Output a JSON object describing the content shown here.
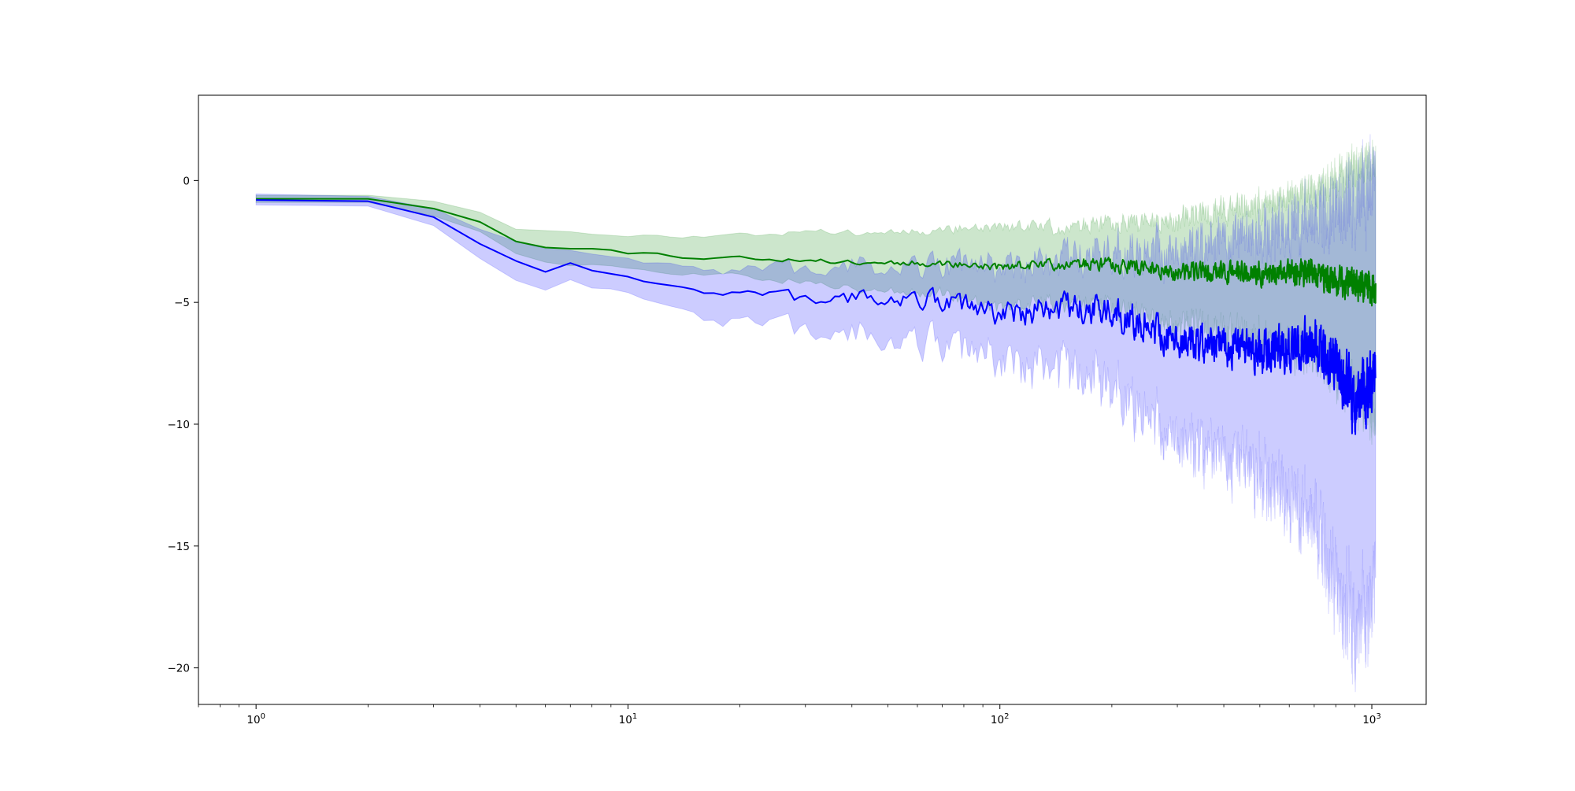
{
  "chart_data": {
    "type": "line",
    "title": "",
    "xlabel": "",
    "ylabel": "",
    "xscale": "log",
    "xlim": [
      0.7,
      1400
    ],
    "ylim": [
      -21.5,
      3.5
    ],
    "grid": false,
    "legend": "none",
    "x_ticks": [
      {
        "value": 1,
        "base": "10",
        "exp": "0"
      },
      {
        "value": 10,
        "base": "10",
        "exp": "1"
      },
      {
        "value": 100,
        "base": "10",
        "exp": "2"
      },
      {
        "value": 1000,
        "base": "10",
        "exp": "3"
      }
    ],
    "y_ticks": [
      {
        "value": 0,
        "label": "0"
      },
      {
        "value": -5,
        "label": "−5"
      },
      {
        "value": -10,
        "label": "−10"
      },
      {
        "value": -15,
        "label": "−15"
      },
      {
        "value": -20,
        "label": "−20"
      }
    ],
    "series": [
      {
        "color": "#008000",
        "band_color": "#008000",
        "band_opacity": 0.2,
        "noise_seed": 11,
        "x": [
          1,
          2,
          3,
          4,
          5,
          6,
          7,
          8,
          9,
          10,
          12,
          15,
          20,
          30,
          50,
          70,
          100,
          150,
          200,
          300,
          500,
          700,
          800,
          1000,
          1024
        ],
        "y": [
          -0.75,
          -0.75,
          -1.15,
          -1.7,
          -2.5,
          -2.75,
          -2.8,
          -2.8,
          -2.85,
          -3.0,
          -2.95,
          -3.2,
          -3.15,
          -3.3,
          -3.35,
          -3.4,
          -3.55,
          -3.4,
          -3.45,
          -3.75,
          -3.8,
          -3.8,
          -4.2,
          -4.4,
          -4.5
        ],
        "upper": [
          -0.6,
          -0.6,
          -0.85,
          -1.3,
          -2.0,
          -2.05,
          -2.1,
          -2.2,
          -2.25,
          -2.3,
          -2.2,
          -2.3,
          -2.2,
          -2.1,
          -2.1,
          -2.0,
          -1.9,
          -1.9,
          -1.8,
          -1.6,
          -1.0,
          -0.5,
          0.0,
          0.8,
          1.0
        ],
        "lower": [
          -0.9,
          -0.9,
          -1.45,
          -2.1,
          -3.0,
          -3.35,
          -3.5,
          -3.45,
          -3.5,
          -3.6,
          -3.7,
          -3.8,
          -3.9,
          -4.2,
          -4.5,
          -4.6,
          -5.2,
          -5.0,
          -5.2,
          -5.9,
          -6.5,
          -7.2,
          -8.0,
          -9.5,
          -9.8
        ],
        "noise": [
          0,
          0,
          0,
          0,
          0,
          0,
          0,
          0,
          0,
          0,
          0.04,
          0.05,
          0.06,
          0.08,
          0.1,
          0.12,
          0.15,
          0.2,
          0.25,
          0.3,
          0.38,
          0.45,
          0.5,
          0.55,
          0.55
        ]
      },
      {
        "color": "#0000ff",
        "band_color": "#0000ff",
        "band_opacity": 0.2,
        "noise_seed": 7,
        "x": [
          1,
          2,
          3,
          4,
          5,
          6,
          7,
          8,
          9,
          10,
          12,
          15,
          20,
          30,
          50,
          70,
          100,
          150,
          200,
          300,
          500,
          700,
          800,
          900,
          1000,
          1024
        ],
        "y": [
          -0.8,
          -0.85,
          -1.5,
          -2.6,
          -3.3,
          -3.75,
          -3.4,
          -3.7,
          -3.9,
          -4.1,
          -4.3,
          -4.5,
          -4.55,
          -4.9,
          -4.8,
          -4.9,
          -5.5,
          -5.3,
          -5.4,
          -6.5,
          -7.0,
          -6.8,
          -7.5,
          -9.0,
          -8.5,
          -8.0
        ],
        "upper": [
          -0.55,
          -0.65,
          -1.15,
          -2.0,
          -2.5,
          -2.8,
          -2.9,
          -3.0,
          -3.2,
          -3.35,
          -3.5,
          -3.6,
          -3.6,
          -3.7,
          -3.5,
          -3.4,
          -3.6,
          -3.3,
          -3.0,
          -2.8,
          -2.3,
          -1.6,
          -1.2,
          -0.8,
          -0.4,
          0.0
        ],
        "lower": [
          -1.0,
          -1.05,
          -1.85,
          -3.2,
          -4.1,
          -4.5,
          -4.1,
          -4.4,
          -4.6,
          -4.85,
          -5.2,
          -5.5,
          -5.7,
          -6.2,
          -6.5,
          -6.6,
          -7.5,
          -7.8,
          -8.5,
          -10.5,
          -12.0,
          -14.0,
          -16.5,
          -18.5,
          -17.5,
          -16.5
        ],
        "noise": [
          0,
          0,
          0,
          0,
          0,
          0,
          0.05,
          0.08,
          0.1,
          0.12,
          0.15,
          0.18,
          0.2,
          0.25,
          0.3,
          0.35,
          0.4,
          0.5,
          0.55,
          0.6,
          0.75,
          0.85,
          0.95,
          1.1,
          1.2,
          1.2
        ]
      }
    ]
  }
}
